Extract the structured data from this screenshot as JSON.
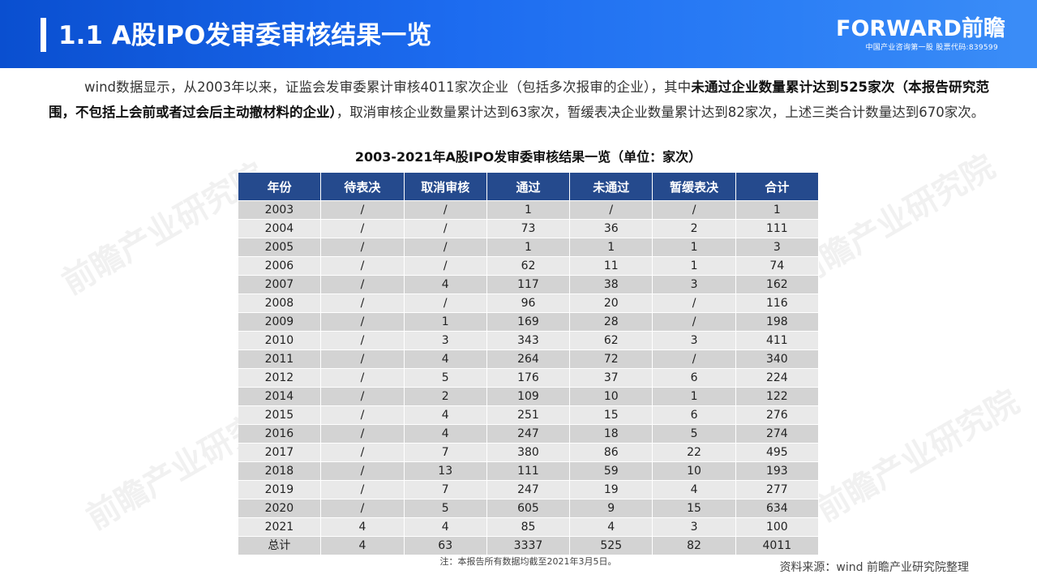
{
  "header": {
    "title": "1.1 A股IPO发审委审核结果一览",
    "brand_logo": "FORWARD前瞻",
    "brand_sub": "中国产业咨询第一股 股票代码:839599"
  },
  "intro": {
    "part1": "wind数据显示，从2003年以来，证监会发审委累计审核4011家次企业（包括多次报审的企业），其中",
    "bold": "未通过企业数量累计达到525家次（本报告研究范围，不包括上会前或者过会后主动撤材料的企业）",
    "part2": "，取消审核企业数量累计达到63家次，暂缓表决企业数量累计达到82家次，上述三类合计数量达到670家次。"
  },
  "table": {
    "title": "2003-2021年A股IPO发审委审核结果一览（单位：家次）",
    "headers": [
      "年份",
      "待表决",
      "取消审核",
      "通过",
      "未通过",
      "暂缓表决",
      "合计"
    ],
    "rows": [
      [
        "2003",
        "/",
        "/",
        "1",
        "/",
        "/",
        "1"
      ],
      [
        "2004",
        "/",
        "/",
        "73",
        "36",
        "2",
        "111"
      ],
      [
        "2005",
        "/",
        "/",
        "1",
        "1",
        "1",
        "3"
      ],
      [
        "2006",
        "/",
        "/",
        "62",
        "11",
        "1",
        "74"
      ],
      [
        "2007",
        "/",
        "4",
        "117",
        "38",
        "3",
        "162"
      ],
      [
        "2008",
        "/",
        "/",
        "96",
        "20",
        "/",
        "116"
      ],
      [
        "2009",
        "/",
        "1",
        "169",
        "28",
        "/",
        "198"
      ],
      [
        "2010",
        "/",
        "3",
        "343",
        "62",
        "3",
        "411"
      ],
      [
        "2011",
        "/",
        "4",
        "264",
        "72",
        "/",
        "340"
      ],
      [
        "2012",
        "/",
        "5",
        "176",
        "37",
        "6",
        "224"
      ],
      [
        "2014",
        "/",
        "2",
        "109",
        "10",
        "1",
        "122"
      ],
      [
        "2015",
        "/",
        "4",
        "251",
        "15",
        "6",
        "276"
      ],
      [
        "2016",
        "/",
        "4",
        "247",
        "18",
        "5",
        "274"
      ],
      [
        "2017",
        "/",
        "7",
        "380",
        "86",
        "22",
        "495"
      ],
      [
        "2018",
        "/",
        "13",
        "111",
        "59",
        "10",
        "193"
      ],
      [
        "2019",
        "/",
        "7",
        "247",
        "19",
        "4",
        "277"
      ],
      [
        "2020",
        "/",
        "5",
        "605",
        "9",
        "15",
        "634"
      ],
      [
        "2021",
        "4",
        "4",
        "85",
        "4",
        "3",
        "100"
      ],
      [
        "总计",
        "4",
        "63",
        "3337",
        "525",
        "82",
        "4011"
      ]
    ],
    "footnote": "注：本报告所有数据均截至2021年3月5日。"
  },
  "source": "资料来源：wind 前瞻产业研究院整理",
  "watermark": "前瞻产业研究院",
  "colors": {
    "header_gradient_start": "#0a4fd0",
    "header_gradient_end": "#3b8df7",
    "table_header": "#254a8d",
    "row_dark": "#d3d3d3",
    "row_light": "#e9e9e9"
  }
}
